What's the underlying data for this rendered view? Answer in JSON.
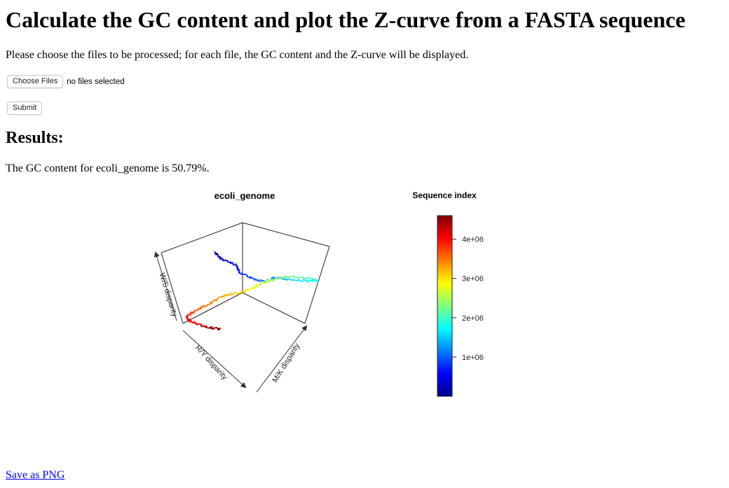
{
  "page": {
    "title": "Calculate the GC content and plot the Z-curve from a FASTA sequence",
    "intro": "Please choose the files to be processed; for each file, the GC content and the Z-curve will be displayed."
  },
  "form": {
    "choose_files_label": "Choose Files",
    "no_files_text": "no files selected",
    "submit_label": "Submit"
  },
  "results": {
    "heading": "Results:",
    "gc_text": "The GC content for ecoli_genome is 50.79%."
  },
  "chart_data": {
    "type": "line",
    "title": "ecoli_genome",
    "axes": {
      "x": "R/Y disparity",
      "y": "M/K disparity",
      "z": "W/S disparity"
    },
    "color_by": "Sequence index",
    "colorbar": {
      "title": "Sequence index",
      "ticks": [
        1000000,
        2000000,
        3000000,
        4000000
      ],
      "tick_labels": [
        "1e+06",
        "2e+06",
        "3e+06",
        "4e+06"
      ],
      "range": [
        0,
        4600000
      ],
      "colormap": [
        "#00008f",
        "#0000ff",
        "#0080ff",
        "#00ffff",
        "#80ff80",
        "#ffff00",
        "#ff8000",
        "#ff0000",
        "#800000"
      ]
    },
    "grid": false
  },
  "footer": {
    "save_label": "Save as PNG"
  },
  "colors": {
    "link": "#0000ee",
    "text": "#000000"
  }
}
